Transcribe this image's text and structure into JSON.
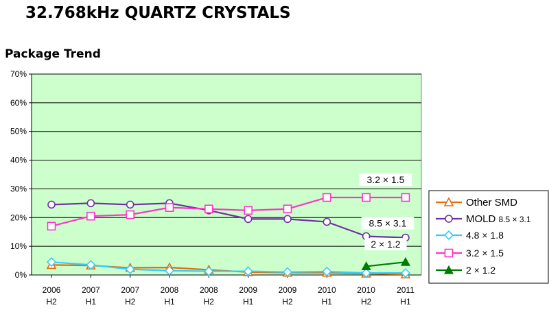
{
  "title": "32.768kHz QUARTZ CRYSTALS",
  "subtitle": "Package Trend",
  "chart_data": {
    "type": "line",
    "title": "Package Trend",
    "xlabel": "",
    "ylabel": "",
    "ylim": [
      0,
      70
    ],
    "yticks": [
      "0%",
      "10%",
      "20%",
      "30%",
      "40%",
      "50%",
      "60%",
      "70%"
    ],
    "grid": true,
    "legend_position": "right",
    "background_color": "#ccffcc",
    "categories": [
      "2006 H2",
      "2007 H1",
      "2007 H2",
      "2008 H1",
      "2008 H2",
      "2009 H1",
      "2009 H2",
      "2010 H1",
      "2010 H2",
      "2011 H1"
    ],
    "category_lines": [
      [
        "2006",
        "H2"
      ],
      [
        "2007",
        "H1"
      ],
      [
        "2007",
        "H2"
      ],
      [
        "2008",
        "H1"
      ],
      [
        "2008",
        "H2"
      ],
      [
        "2009",
        "H1"
      ],
      [
        "2009",
        "H2"
      ],
      [
        "2010",
        "H1"
      ],
      [
        "2010",
        "H2"
      ],
      [
        "2011",
        "H1"
      ]
    ],
    "series": [
      {
        "name": "Other SMD",
        "color": "#e46c0a",
        "marker": "triangle-open",
        "values": [
          3.5,
          3.3,
          2.5,
          2.6,
          1.8,
          1.0,
          0.8,
          0.8,
          0.5,
          0.2
        ]
      },
      {
        "name": "MOLD 8.5 × 3.1",
        "legend_main": "MOLD",
        "legend_sub": "8.5 × 3.1",
        "color": "#7030a0",
        "marker": "circle-open",
        "values": [
          24.5,
          25.0,
          24.5,
          25.0,
          22.5,
          19.5,
          19.5,
          18.5,
          13.5,
          13.0
        ]
      },
      {
        "name": "4.8 × 1.8",
        "color": "#33ccff",
        "marker": "diamond-open",
        "values": [
          4.5,
          3.5,
          2.0,
          1.5,
          1.3,
          1.3,
          1.0,
          1.2,
          0.7,
          0.7
        ]
      },
      {
        "name": "3.2 × 1.5",
        "color": "#ff33cc",
        "marker": "square-open",
        "values": [
          17.0,
          20.5,
          21.0,
          23.5,
          23.0,
          22.5,
          23.0,
          27.0,
          27.0,
          27.0
        ]
      },
      {
        "name": "2 × 1.2",
        "color": "#007a00",
        "marker": "triangle-filled",
        "start_index": 8,
        "values": [
          null,
          null,
          null,
          null,
          null,
          null,
          null,
          null,
          3.0,
          4.5
        ]
      }
    ],
    "annotations": [
      {
        "text": "3.2 × 1.5",
        "series": "3.2 × 1.5"
      },
      {
        "text": "8.5 × 3.1",
        "series": "MOLD 8.5 × 3.1"
      },
      {
        "text": "2 × 1.2",
        "series": "2 × 1.2"
      }
    ]
  }
}
